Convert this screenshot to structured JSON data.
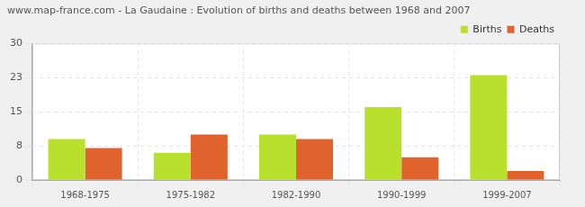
{
  "chart_data": {
    "type": "bar",
    "title": "www.map-france.com - La Gaudaine : Evolution of births and deaths between 1968 and 2007",
    "categories": [
      "1968-1975",
      "1975-1982",
      "1982-1990",
      "1990-1999",
      "1999-2007"
    ],
    "series": [
      {
        "name": "Births",
        "color": "#b9e02d",
        "values": [
          9,
          6,
          10,
          16,
          23
        ]
      },
      {
        "name": "Deaths",
        "color": "#e0632d",
        "values": [
          7,
          10,
          9,
          5,
          2
        ]
      }
    ],
    "ylim": [
      0,
      30
    ],
    "yticks": [
      0,
      {
        "value": 7.5,
        "label": "8"
      },
      15,
      {
        "value": 22.5,
        "label": "23"
      },
      30
    ],
    "grid": true,
    "legend": "top-right"
  }
}
